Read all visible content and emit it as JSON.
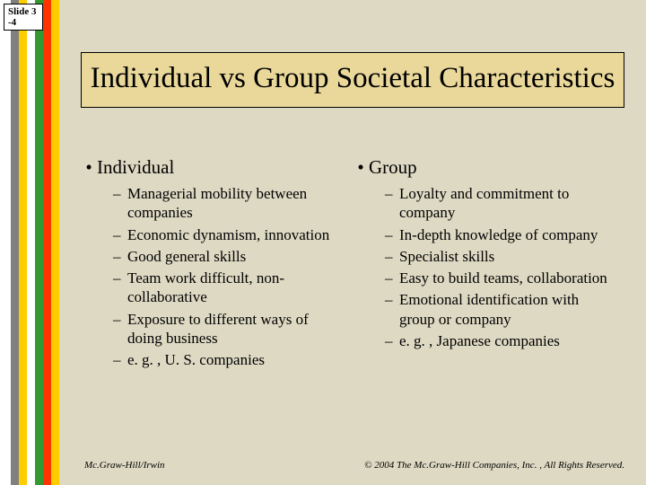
{
  "slide_number": {
    "line1": "Slide 3",
    "line2": "-4"
  },
  "title": "Individual vs Group Societal Characteristics",
  "left": {
    "heading": "Individual",
    "items": [
      "Managerial mobility between companies",
      "Economic dynamism, innovation",
      "Good general skills",
      "Team work difficult, non-collaborative",
      "Exposure to different ways of doing business",
      "e. g. , U. S. companies"
    ]
  },
  "right": {
    "heading": "Group",
    "items": [
      "Loyalty and commitment to company",
      "In-depth knowledge of company",
      "Specialist skills",
      "Easy to build teams, collaboration",
      "Emotional identification with group or company",
      "e. g. , Japanese companies"
    ]
  },
  "footer": {
    "left": "Mc.Graw-Hill/Irwin",
    "right": "© 2004 The Mc.Graw-Hill Companies, Inc. , All Rights Reserved."
  },
  "colors": {
    "background": "#ddd9c3",
    "title_bg": "#e9d89a",
    "stripes": [
      "#ffffff",
      "#808080",
      "#ffcc00",
      "#ffffff",
      "#339933",
      "#ff3300",
      "#ffcc00"
    ]
  }
}
